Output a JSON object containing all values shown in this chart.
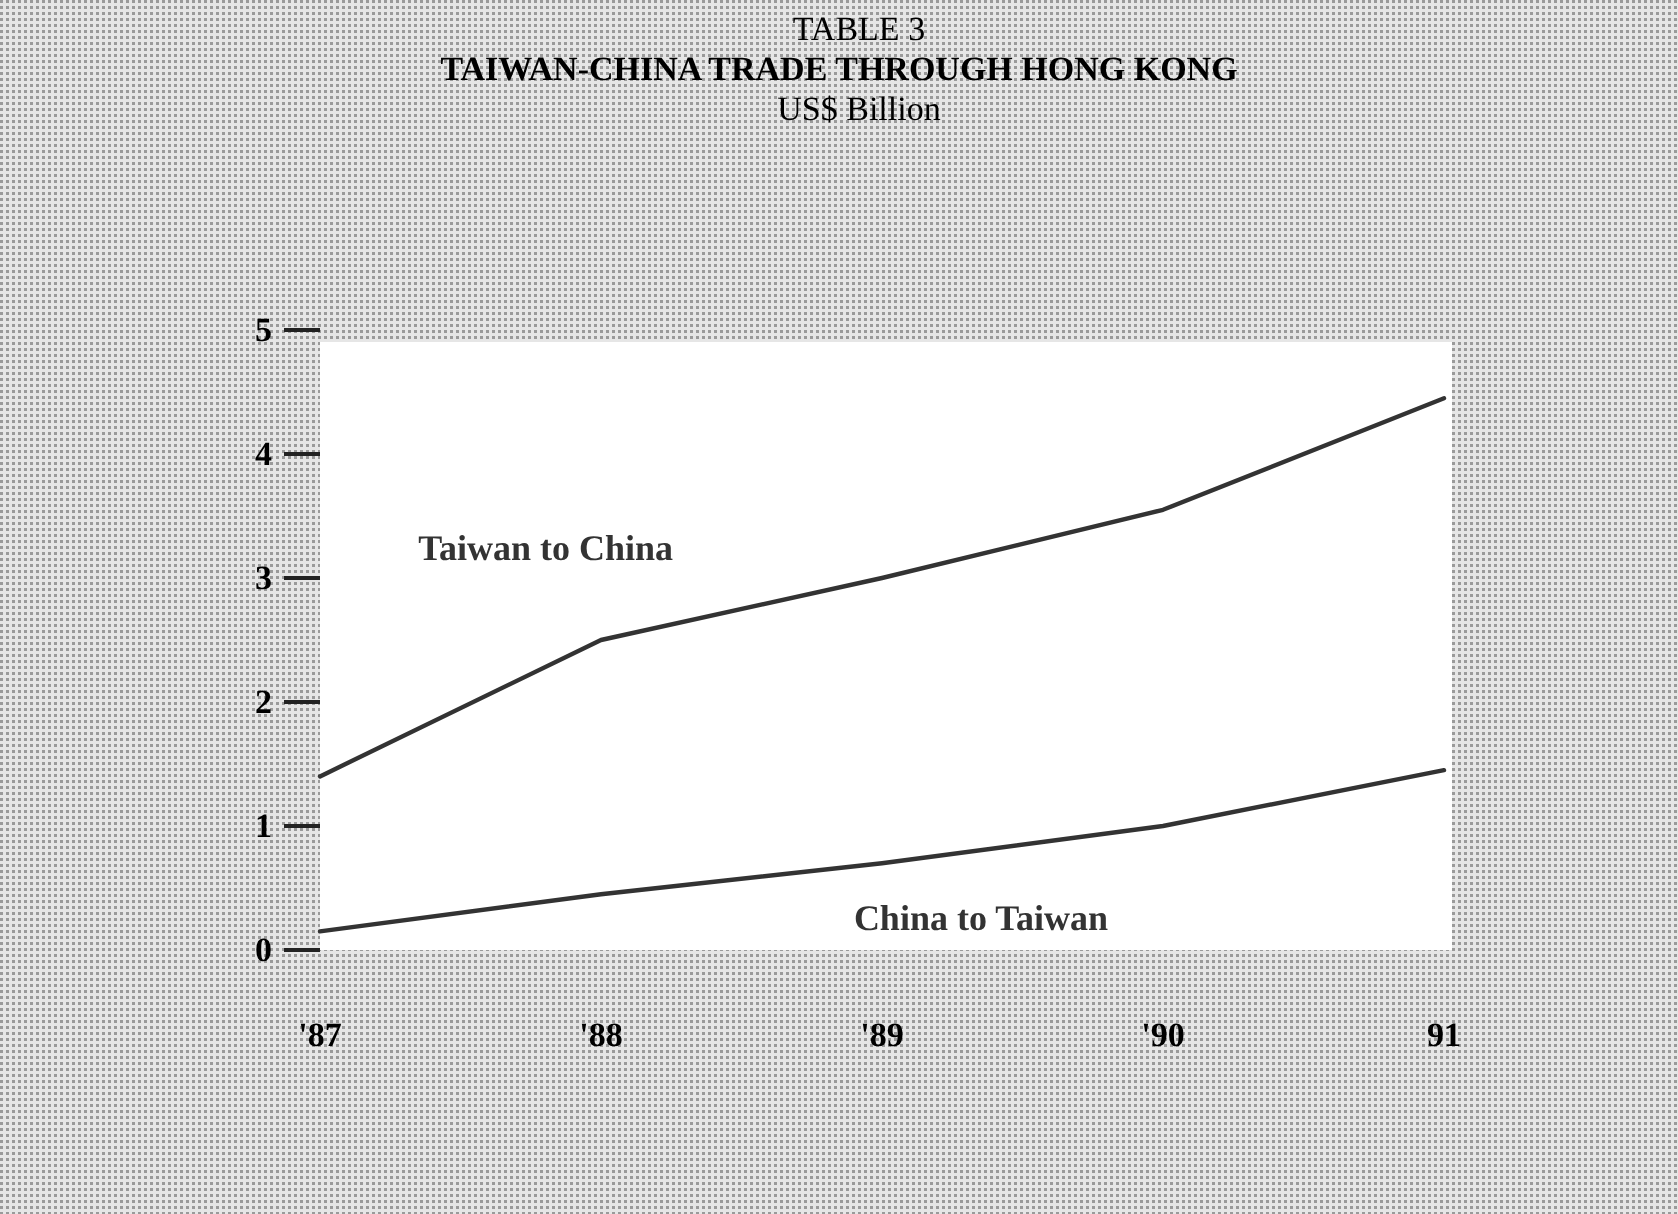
{
  "chart_data": {
    "type": "line",
    "title": "TAIWAN-CHINA TRADE THROUGH HONG KONG",
    "subtitle": "US$ Billion",
    "annotations": [
      "TABLE 3"
    ],
    "categories": [
      "'87",
      "'88",
      "'89",
      "'90",
      "91"
    ],
    "series": [
      {
        "name": "Taiwan to China",
        "color": "#333333",
        "values": [
          1.4,
          2.5,
          3.0,
          3.55,
          4.45
        ]
      },
      {
        "name": "China to Taiwan",
        "color": "#333333",
        "values": [
          0.15,
          0.45,
          0.7,
          1.0,
          1.45
        ]
      }
    ],
    "ylim": [
      0,
      5
    ],
    "yticks": [
      0,
      1,
      2,
      3,
      4,
      5
    ],
    "grid": false,
    "legend": false,
    "marker": "none",
    "line_style": "solid"
  }
}
